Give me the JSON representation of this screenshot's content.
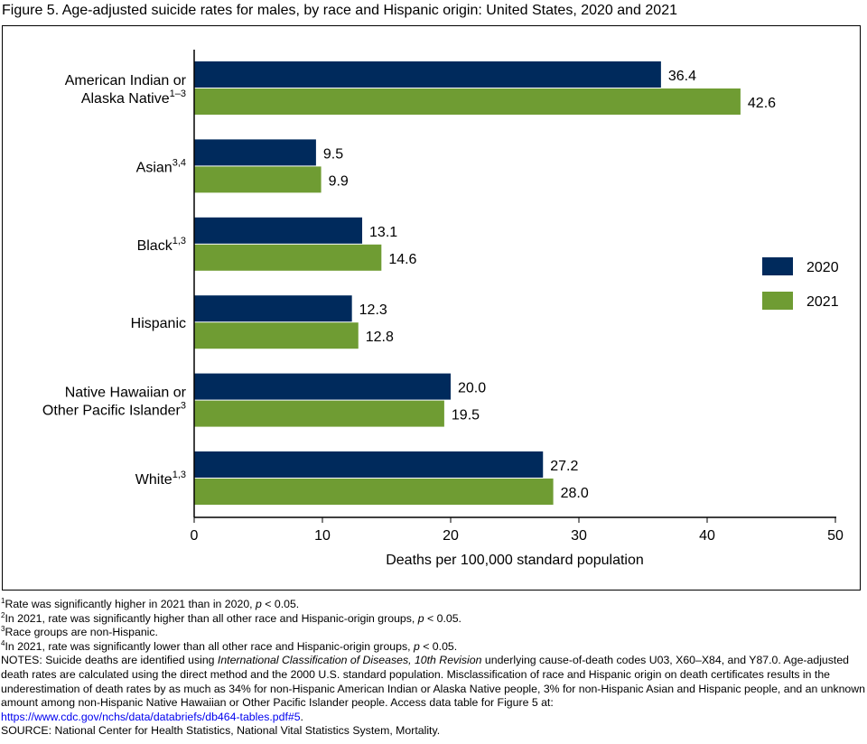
{
  "title": "Figure 5. Age-adjusted suicide rates for males, by race and Hispanic origin: United States, 2020 and 2021",
  "chart_data": {
    "type": "bar",
    "orientation": "horizontal",
    "title": "Figure 5. Age-adjusted suicide rates for males, by race and Hispanic origin: United States, 2020 and 2021",
    "xlabel": "Deaths per 100,000 standard population",
    "ylabel": "",
    "xlim": [
      0,
      50
    ],
    "xticks": [
      "0",
      "10",
      "20",
      "30",
      "40",
      "50"
    ],
    "categories": [
      {
        "lines": [
          "American Indian or",
          "Alaska Native"
        ],
        "sup": "1–3"
      },
      {
        "lines": [
          "Asian"
        ],
        "sup": "3,4"
      },
      {
        "lines": [
          "Black"
        ],
        "sup": "1,3"
      },
      {
        "lines": [
          "Hispanic"
        ],
        "sup": ""
      },
      {
        "lines": [
          "Native Hawaiian or",
          "Other Pacific Islander"
        ],
        "sup": "3"
      },
      {
        "lines": [
          "White"
        ],
        "sup": "1,3"
      }
    ],
    "series": [
      {
        "name": "2020",
        "color": "#002a5c",
        "values": [
          36.4,
          9.5,
          13.1,
          12.3,
          20.0,
          27.2
        ],
        "labels": [
          "36.4",
          "9.5",
          "13.1",
          "12.3",
          "20.0",
          "27.2"
        ]
      },
      {
        "name": "2021",
        "color": "#6f9c33",
        "values": [
          42.6,
          9.9,
          14.6,
          12.8,
          19.5,
          28.0
        ],
        "labels": [
          "42.6",
          "9.9",
          "14.6",
          "12.8",
          "19.5",
          "28.0"
        ]
      }
    ],
    "legend": "right",
    "grid": false
  },
  "notes": {
    "fn1": {
      "sup": "1",
      "text": "Rate was significantly higher in 2021 than in 2020, ",
      "p": "p",
      "tail": " < 0.05."
    },
    "fn2": {
      "sup": "2",
      "text": "In 2021, rate was significantly higher than all other race and Hispanic-origin groups, ",
      "p": "p",
      "tail": " < 0.05."
    },
    "fn3": {
      "sup": "3",
      "text": "Race groups are non-Hispanic."
    },
    "fn4": {
      "sup": "4",
      "text": "In 2021, rate was significantly lower than all other race and Hispanic-origin groups, ",
      "p": "p",
      "tail": " < 0.05."
    },
    "notes_a": "NOTES: Suicide deaths are identified using ",
    "notes_italic": "International Classification of Diseases, 10th Revision",
    "notes_b": " underlying cause-of-death codes U03, X60–X84, and Y87.0. Age-adjusted death rates are calculated using the direct method and the 2000 U.S. standard population. Misclassification of race and Hispanic origin on death certificates results in the underestimation of death rates by as much as 34% for non-Hispanic American Indian or Alaska Native people, 3% for non-Hispanic Asian and Hispanic people, and an unknown amount among non-Hispanic Native Hawaiian or Other Pacific Islander people. Access data table for Figure 5 at:",
    "link": "https://www.cdc.gov/nchs/data/databriefs/db464-tables.pdf#5",
    "link_tail": ".",
    "source": "SOURCE: National Center for Health Statistics, National Vital Statistics System, Mortality."
  }
}
